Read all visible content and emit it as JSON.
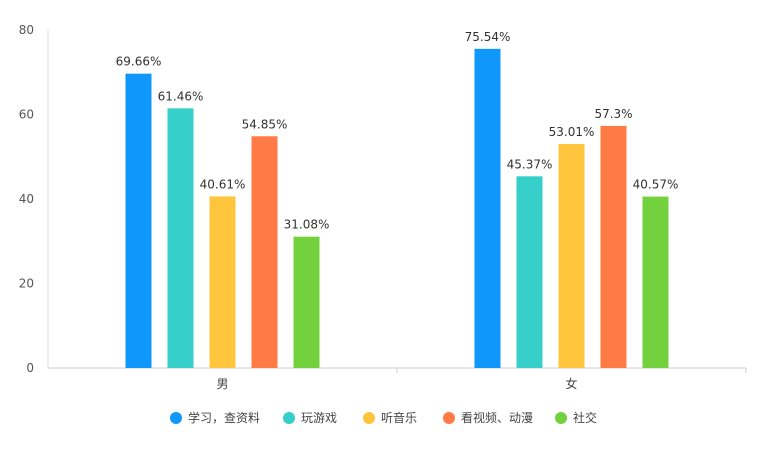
{
  "chart_data": {
    "type": "bar",
    "categories": [
      "男",
      "女"
    ],
    "series": [
      {
        "name": "学习，查资料",
        "color": "#0f97fb",
        "values": [
          69.66,
          75.54
        ],
        "labels": [
          "69.66%",
          "75.54%"
        ]
      },
      {
        "name": "玩游戏",
        "color": "#36cfc9",
        "values": [
          61.46,
          45.37
        ],
        "labels": [
          "61.46%",
          "45.37%"
        ]
      },
      {
        "name": "听音乐",
        "color": "#ffc53d",
        "values": [
          40.61,
          53.01
        ],
        "labels": [
          "40.61%",
          "53.01%"
        ]
      },
      {
        "name": "看视频、动漫",
        "color": "#ff7a45",
        "values": [
          54.85,
          57.3
        ],
        "labels": [
          "54.85%",
          "57.3%"
        ]
      },
      {
        "name": "社交",
        "color": "#73d13d",
        "values": [
          31.08,
          40.57
        ],
        "labels": [
          "31.08%",
          "40.57%"
        ]
      }
    ],
    "yticks": [
      "0",
      "20",
      "40",
      "60",
      "80"
    ],
    "ylim": [
      0,
      80
    ],
    "grid": false,
    "legend": "bottom-center",
    "title": "",
    "xlabel": "",
    "ylabel": ""
  }
}
